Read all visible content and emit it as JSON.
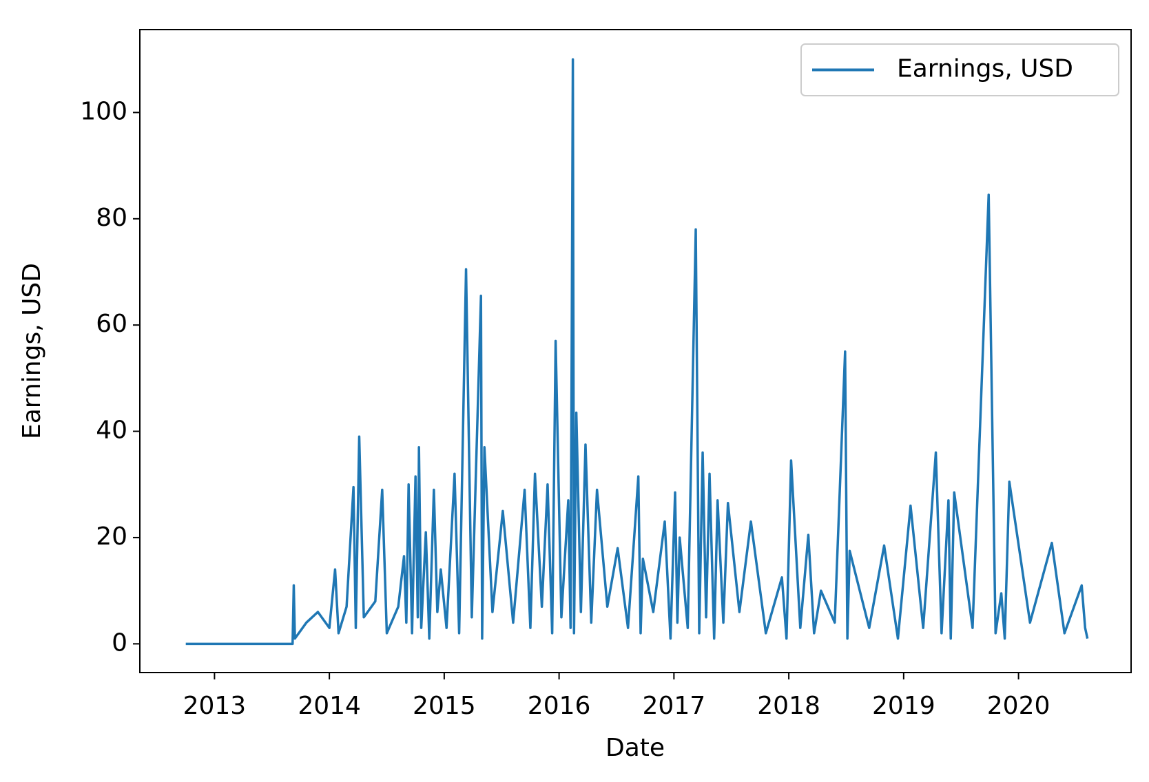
{
  "chart_data": {
    "type": "line",
    "x_label": "Date",
    "y_label": "Earnings, USD",
    "x": [
      2012.75,
      2013.68,
      2013.69,
      2013.7,
      2013.8,
      2013.9,
      2014.0,
      2014.05,
      2014.08,
      2014.15,
      2014.21,
      2014.23,
      2014.26,
      2014.3,
      2014.4,
      2014.46,
      2014.5,
      2014.6,
      2014.65,
      2014.67,
      2014.69,
      2014.72,
      2014.75,
      2014.77,
      2014.78,
      2014.8,
      2014.84,
      2014.87,
      2014.91,
      2014.94,
      2014.97,
      2015.02,
      2015.09,
      2015.13,
      2015.19,
      2015.24,
      2015.32,
      2015.33,
      2015.35,
      2015.42,
      2015.51,
      2015.6,
      2015.7,
      2015.75,
      2015.79,
      2015.85,
      2015.9,
      2015.94,
      2015.97,
      2016.02,
      2016.08,
      2016.1,
      2016.12,
      2016.13,
      2016.15,
      2016.19,
      2016.23,
      2016.28,
      2016.33,
      2016.42,
      2016.51,
      2016.6,
      2016.69,
      2016.71,
      2016.73,
      2016.82,
      2016.92,
      2016.97,
      2017.01,
      2017.03,
      2017.05,
      2017.12,
      2017.19,
      2017.22,
      2017.25,
      2017.28,
      2017.31,
      2017.35,
      2017.38,
      2017.43,
      2017.47,
      2017.57,
      2017.67,
      2017.8,
      2017.94,
      2017.98,
      2018.02,
      2018.1,
      2018.17,
      2018.22,
      2018.28,
      2018.4,
      2018.49,
      2018.51,
      2018.53,
      2018.7,
      2018.83,
      2018.95,
      2019.06,
      2019.17,
      2019.28,
      2019.33,
      2019.39,
      2019.41,
      2019.44,
      2019.6,
      2019.74,
      2019.8,
      2019.85,
      2019.88,
      2019.92,
      2020.1,
      2020.29,
      2020.4,
      2020.55,
      2020.58,
      2020.6
    ],
    "series": [
      {
        "name": "Earnings, USD",
        "color": "#1f77b4",
        "values": [
          0,
          0,
          11,
          1,
          4,
          6,
          3,
          14,
          2,
          7,
          29.5,
          3,
          39,
          5,
          8,
          29,
          2,
          7,
          16.5,
          4,
          30,
          2,
          31.5,
          5,
          37,
          3,
          21,
          1,
          29,
          6,
          14,
          3,
          32,
          2,
          70.5,
          5,
          65.5,
          1,
          37,
          6,
          25,
          4,
          29,
          3,
          32,
          7,
          30,
          2,
          57,
          5,
          27,
          3,
          110,
          2,
          43.5,
          6,
          37.5,
          4,
          29,
          7,
          18,
          3,
          31.5,
          2,
          16,
          6,
          23,
          1,
          28.5,
          4,
          20,
          3,
          78,
          2,
          36,
          5,
          32,
          1,
          27,
          4,
          26.5,
          6,
          23,
          2,
          12.5,
          1,
          34.5,
          3,
          20.5,
          2,
          10,
          4,
          55,
          1,
          17.5,
          3,
          18.5,
          1,
          26,
          3,
          36,
          2,
          27,
          1,
          28.5,
          3,
          84.5,
          2,
          9.5,
          1,
          30.5,
          4,
          19,
          2,
          11,
          3,
          1
        ]
      }
    ],
    "xlim": [
      2012.35,
      2020.98
    ],
    "xticks": [
      2013,
      2014,
      2015,
      2016,
      2017,
      2018,
      2019,
      2020
    ],
    "ylim": [
      -5.4,
      115.6
    ],
    "yticks": [
      0,
      20,
      40,
      60,
      80,
      100
    ],
    "legend": "upper right"
  }
}
